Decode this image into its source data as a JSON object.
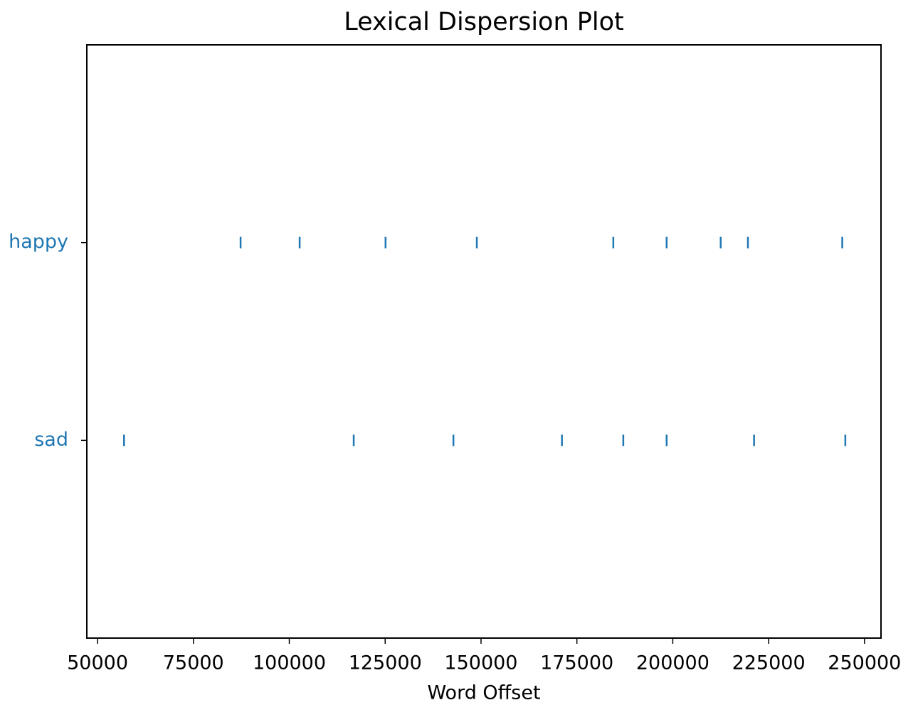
{
  "chart_data": {
    "type": "dispersion",
    "title": "Lexical Dispersion Plot",
    "xlabel": "Word Offset",
    "color": "#1f77b4",
    "series": [
      {
        "name": "happy",
        "x": [
          87300,
          102700,
          125100,
          148900,
          184500,
          198400,
          212500,
          219600,
          244200
        ]
      },
      {
        "name": "sad",
        "x": [
          56900,
          116800,
          142800,
          171100,
          187100,
          198400,
          221200,
          245000
        ]
      }
    ],
    "xlim": [
      47200,
      254300
    ],
    "xticks": [
      50000,
      75000,
      100000,
      125000,
      150000,
      175000,
      200000,
      225000,
      250000
    ]
  }
}
